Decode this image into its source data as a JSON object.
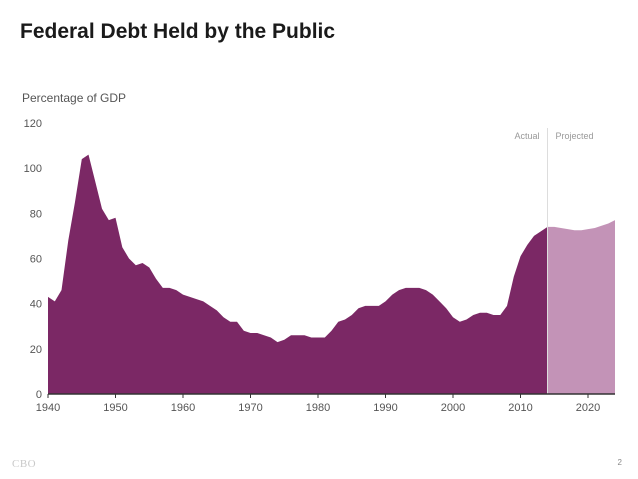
{
  "slide": {
    "title": "Federal Debt Held by the Public",
    "footer_logo": "CBO",
    "page_number": "2"
  },
  "chart_data": {
    "type": "area",
    "title": "Federal Debt Held by the Public",
    "ylabel": "Percentage of GDP",
    "xlabel": "",
    "xlim": [
      1940,
      2024
    ],
    "ylim": [
      0,
      120
    ],
    "x_ticks": [
      1940,
      1950,
      1960,
      1970,
      1980,
      1990,
      2000,
      2010,
      2020
    ],
    "y_ticks": [
      0,
      20,
      40,
      60,
      80,
      100,
      120
    ],
    "grid": false,
    "divider_year": 2014,
    "colors": {
      "actual": "#7b2865",
      "projected": "#c393b7",
      "axis": "#333333",
      "label": "#555555"
    },
    "series": [
      {
        "name": "Actual",
        "x": [
          1940,
          1941,
          1942,
          1943,
          1944,
          1945,
          1946,
          1947,
          1948,
          1949,
          1950,
          1951,
          1952,
          1953,
          1954,
          1955,
          1956,
          1957,
          1958,
          1959,
          1960,
          1961,
          1962,
          1963,
          1964,
          1965,
          1966,
          1967,
          1968,
          1969,
          1970,
          1971,
          1972,
          1973,
          1974,
          1975,
          1976,
          1977,
          1978,
          1979,
          1980,
          1981,
          1982,
          1983,
          1984,
          1985,
          1986,
          1987,
          1988,
          1989,
          1990,
          1991,
          1992,
          1993,
          1994,
          1995,
          1996,
          1997,
          1998,
          1999,
          2000,
          2001,
          2002,
          2003,
          2004,
          2005,
          2006,
          2007,
          2008,
          2009,
          2010,
          2011,
          2012,
          2013,
          2014
        ],
        "values": [
          43,
          41,
          46,
          68,
          85,
          104,
          106,
          94,
          82,
          77,
          78,
          65,
          60,
          57,
          58,
          56,
          51,
          47,
          47,
          46,
          44,
          43,
          42,
          41,
          39,
          37,
          34,
          32,
          32,
          28,
          27,
          27,
          26,
          25,
          23,
          24,
          26,
          26,
          26,
          25,
          25,
          25,
          28,
          32,
          33,
          35,
          38,
          39,
          39,
          39,
          41,
          44,
          46,
          47,
          47,
          47,
          46,
          44,
          41,
          38,
          34,
          32,
          33,
          35,
          36,
          36,
          35,
          35,
          39,
          52,
          61,
          66,
          70,
          72,
          74
        ]
      },
      {
        "name": "Projected",
        "x": [
          2014,
          2015,
          2016,
          2017,
          2018,
          2019,
          2020,
          2021,
          2022,
          2023,
          2024
        ],
        "values": [
          74,
          74,
          73.5,
          73,
          72.5,
          72.5,
          73,
          73.5,
          74.5,
          75.5,
          77
        ]
      }
    ]
  }
}
